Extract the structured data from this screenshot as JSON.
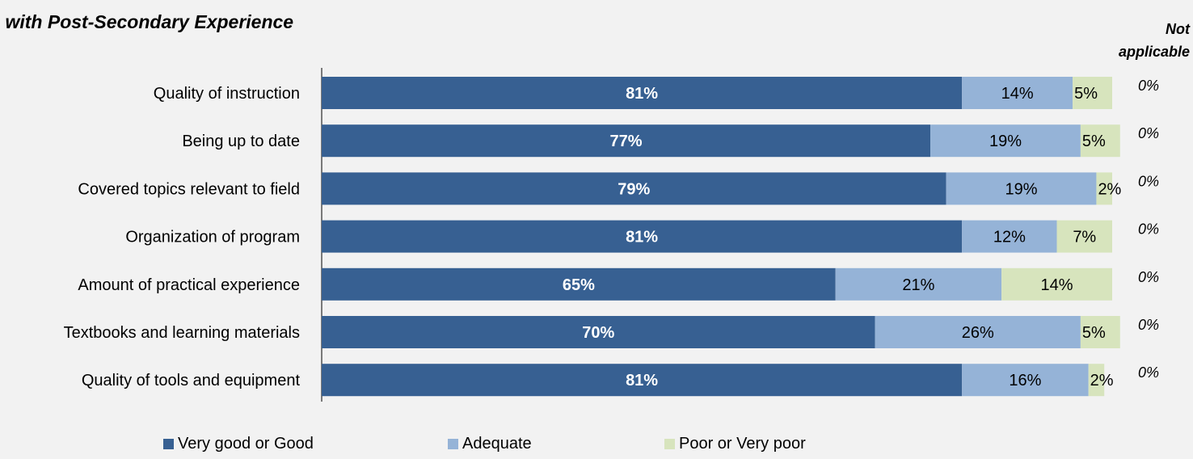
{
  "title": "on with Post-Secondary Experience",
  "na_header": "Not applicable",
  "colors": {
    "very_good": "#376092",
    "adequate": "#95b3d7",
    "poor": "#d7e4bd"
  },
  "chart_data": {
    "type": "bar",
    "orientation": "horizontal",
    "stacked": true,
    "categories": [
      "Quality of instruction",
      "Being up to date",
      "Covered topics relevant to field",
      "Organization of program",
      "Amount of practical experience",
      "Textbooks and learning materials",
      "Quality of tools and equipment"
    ],
    "series": [
      {
        "name": "Very good or Good",
        "values": [
          81,
          77,
          79,
          81,
          65,
          70,
          81
        ],
        "labels": [
          "81%",
          "77%",
          "79%",
          "81%",
          "65%",
          "70%",
          "81%"
        ]
      },
      {
        "name": "Adequate",
        "values": [
          14,
          19,
          19,
          12,
          21,
          26,
          16
        ],
        "labels": [
          "14%",
          "19%",
          "19%",
          "12%",
          "21%",
          "26%",
          "16%"
        ]
      },
      {
        "name": "Poor or Very poor",
        "values": [
          5,
          5,
          2,
          7,
          14,
          5,
          2
        ],
        "labels": [
          "5%",
          "5%",
          "2%",
          "7%",
          "14%",
          "5%",
          "2%"
        ]
      }
    ],
    "not_applicable": [
      "0%",
      "0%",
      "0%",
      "0%",
      "0%",
      "0%",
      "0%"
    ],
    "xlim": [
      0,
      100
    ],
    "grid": false,
    "legend_position": "bottom"
  }
}
